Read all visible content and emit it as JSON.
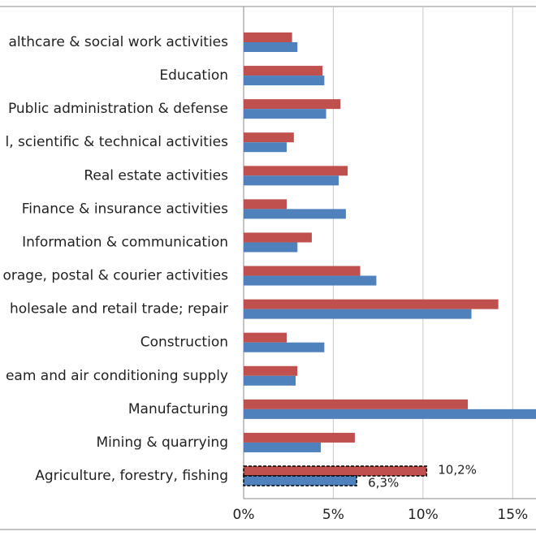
{
  "chart_data": {
    "type": "hbar",
    "categories": [
      "althcare & social work activities",
      "Education",
      "Public administration & defense",
      "l, scientific & technical activities",
      "Real estate activities",
      "Finance & insurance activities",
      "Information & communication",
      "orage, postal & courier activities",
      "holesale and retail trade; repair",
      "Construction",
      "eam and air conditioning supply",
      "Manufacturing",
      "Mining & quarrying",
      "Agriculture, forestry, fishing"
    ],
    "series": [
      {
        "color": "#c0504d",
        "values": [
          2.7,
          4.4,
          5.4,
          2.8,
          5.8,
          2.4,
          3.8,
          6.5,
          14.2,
          2.4,
          3.0,
          12.5,
          6.2,
          10.2
        ],
        "value_labels": [
          null,
          null,
          null,
          null,
          null,
          null,
          null,
          null,
          null,
          null,
          null,
          null,
          null,
          "10,2%"
        ]
      },
      {
        "color": "#4f81bd",
        "values": [
          3.0,
          4.5,
          4.6,
          2.4,
          5.3,
          5.7,
          3.0,
          7.4,
          12.7,
          4.5,
          2.9,
          17.0,
          4.3,
          6.3
        ],
        "value_labels": [
          null,
          null,
          null,
          null,
          null,
          null,
          null,
          null,
          null,
          null,
          null,
          null,
          null,
          "6,3%"
        ]
      }
    ],
    "xlim": [
      0,
      16.3
    ],
    "xticks": [
      {
        "value": 0,
        "label": "0%"
      },
      {
        "value": 5,
        "label": "5%"
      },
      {
        "value": 10,
        "label": "10%"
      },
      {
        "value": 15,
        "label": "15%"
      }
    ],
    "grid": true
  }
}
